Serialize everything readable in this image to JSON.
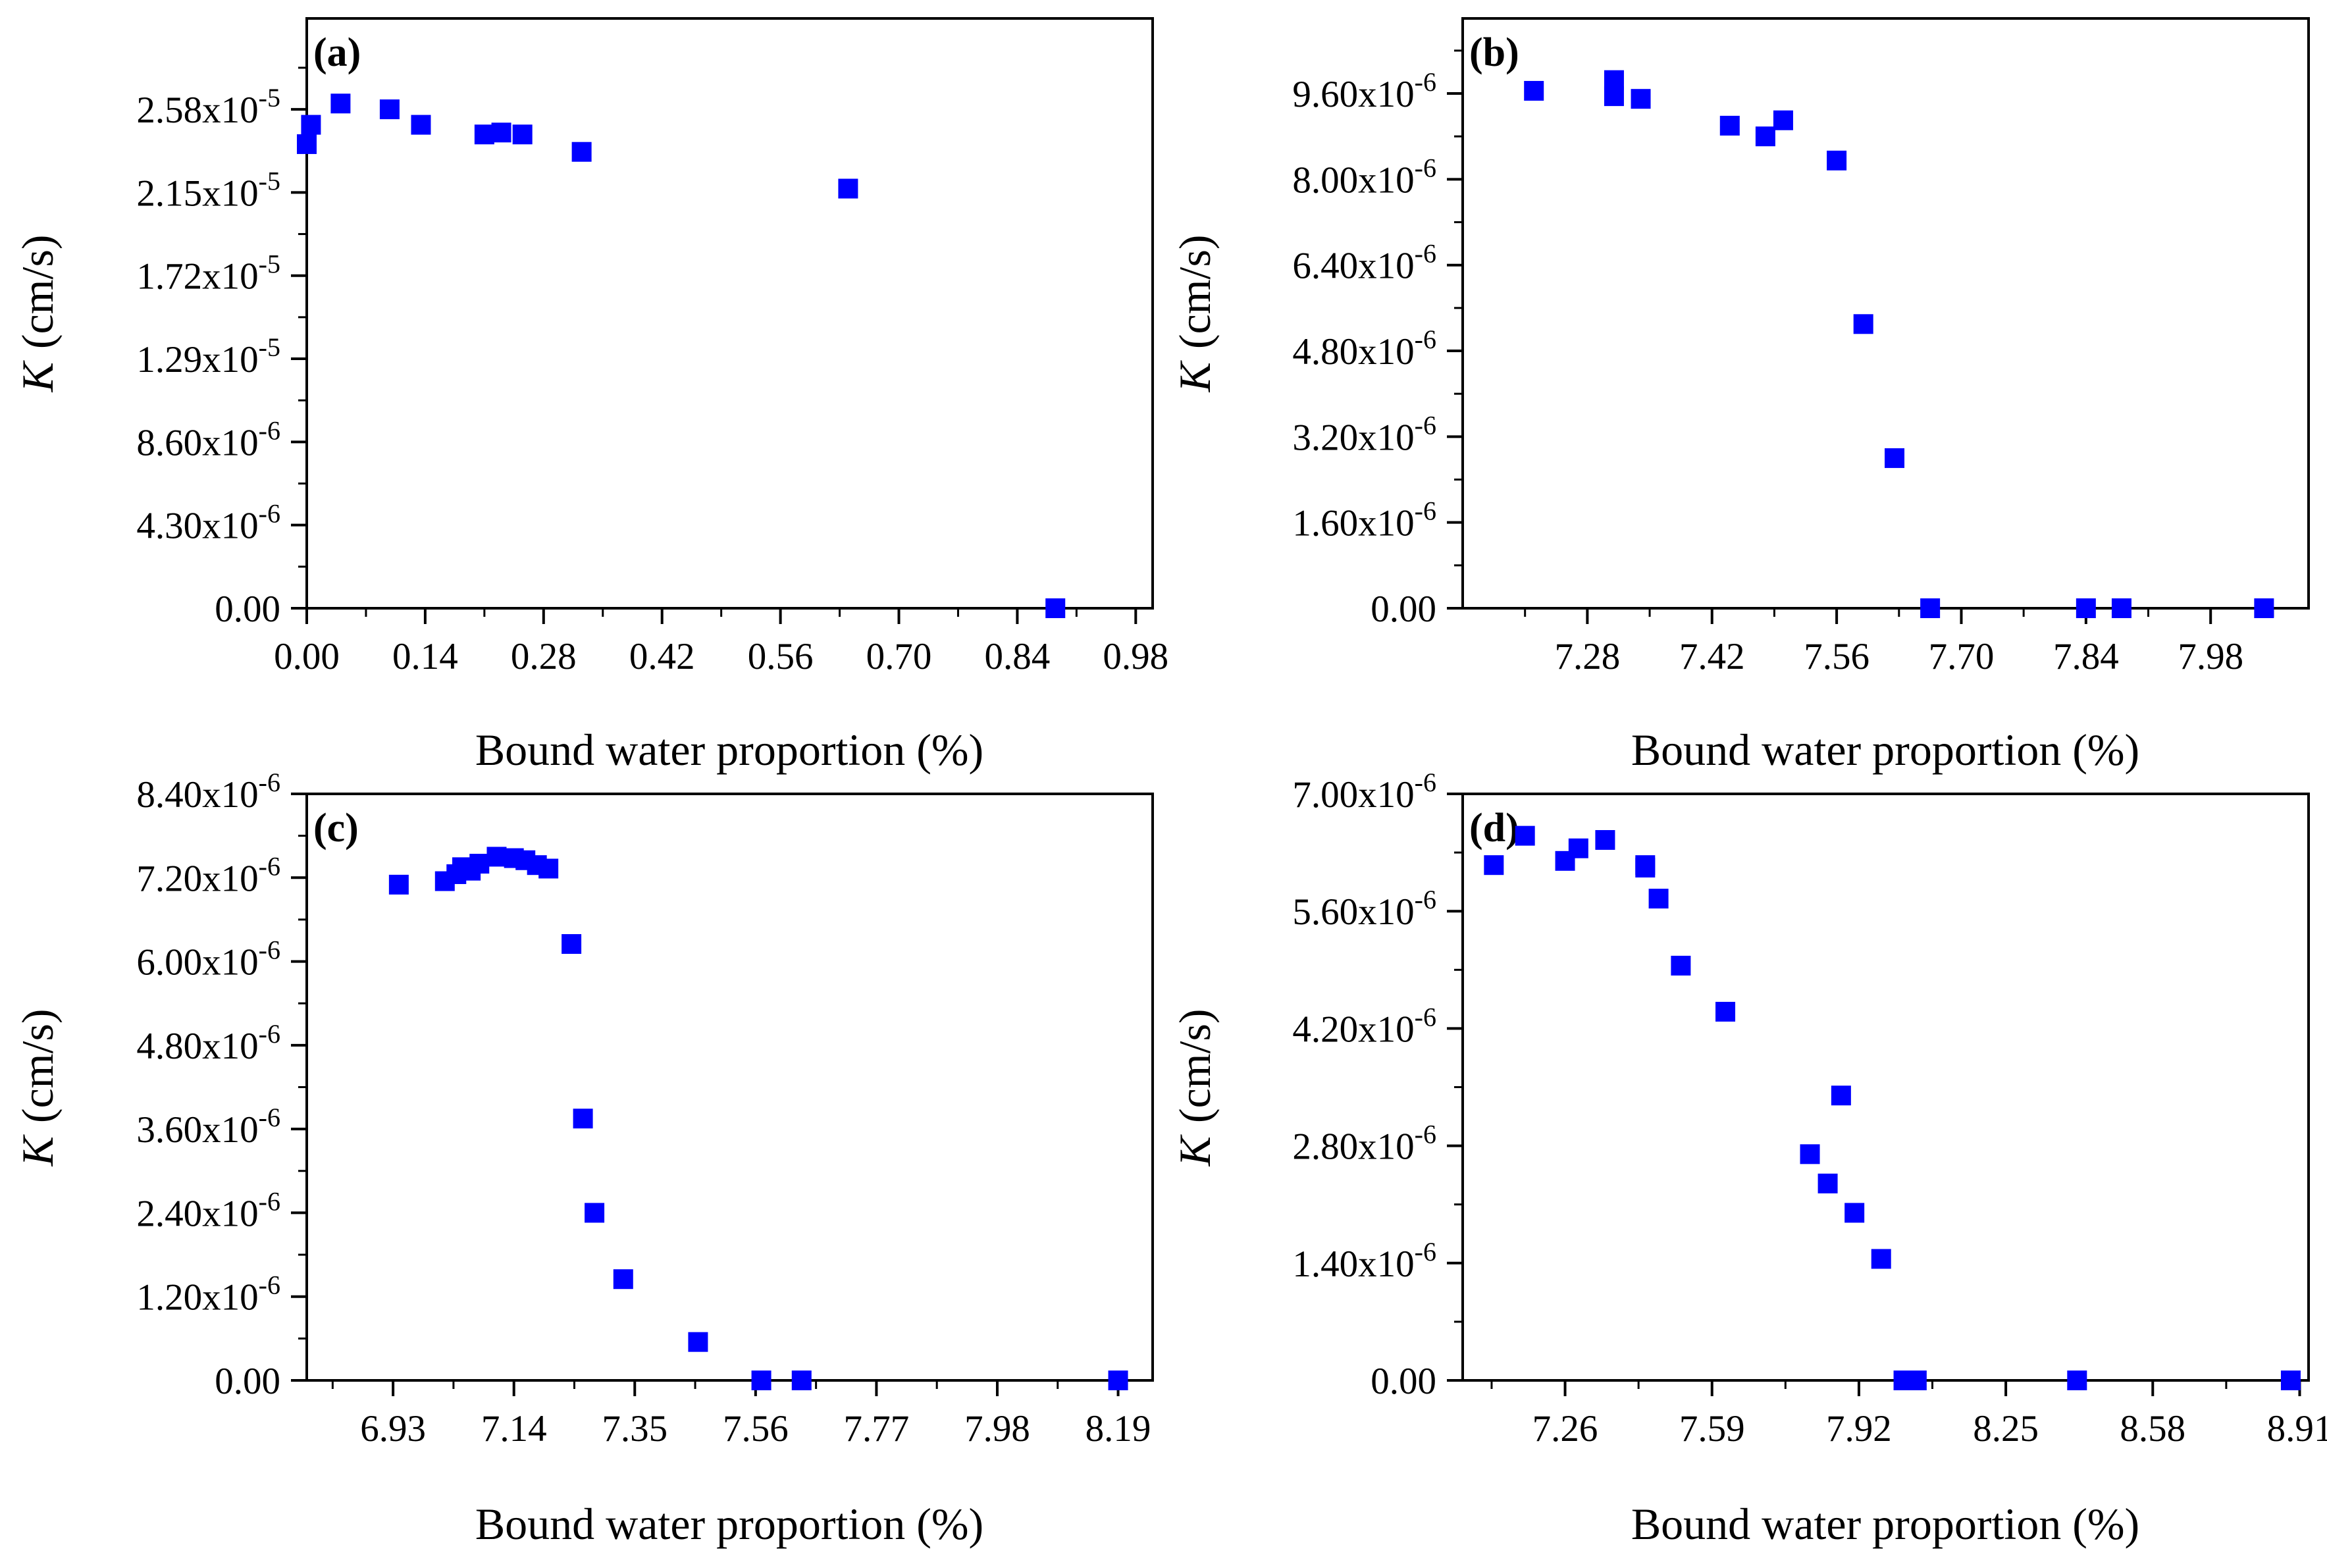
{
  "figure": {
    "marker_color": "#0000ff"
  },
  "chart_data": [
    {
      "type": "scatter",
      "panel_label": "(a)",
      "xlabel": "Bound water proportion (%)",
      "ylabel_var": "K",
      "ylabel_unit": "(cm/s)",
      "xlim": [
        0.0,
        1.0
      ],
      "ylim": [
        0.0,
        3.05e-05
      ],
      "xticks": [
        {
          "v": 0.0,
          "label": "0.00"
        },
        {
          "v": 0.14,
          "label": "0.14"
        },
        {
          "v": 0.28,
          "label": "0.28"
        },
        {
          "v": 0.42,
          "label": "0.42"
        },
        {
          "v": 0.56,
          "label": "0.56"
        },
        {
          "v": 0.7,
          "label": "0.70"
        },
        {
          "v": 0.84,
          "label": "0.84"
        },
        {
          "v": 0.98,
          "label": "0.98"
        }
      ],
      "yticks": [
        {
          "v": 0,
          "label": "0.00",
          "exp": ""
        },
        {
          "v": 4.3e-06,
          "label": "4.30x10",
          "exp": "-6"
        },
        {
          "v": 8.6e-06,
          "label": "8.60x10",
          "exp": "-6"
        },
        {
          "v": 1.29e-05,
          "label": "1.29x10",
          "exp": "-5"
        },
        {
          "v": 1.72e-05,
          "label": "1.72x10",
          "exp": "-5"
        },
        {
          "v": 2.15e-05,
          "label": "2.15x10",
          "exp": "-5"
        },
        {
          "v": 2.58e-05,
          "label": "2.58x10",
          "exp": "-5"
        }
      ],
      "x": [
        0.0,
        0.005,
        0.04,
        0.098,
        0.135,
        0.21,
        0.23,
        0.255,
        0.325,
        0.64,
        0.885
      ],
      "y": [
        2.4e-05,
        2.5e-05,
        2.61e-05,
        2.58e-05,
        2.5e-05,
        2.45e-05,
        2.46e-05,
        2.45e-05,
        2.36e-05,
        2.17e-05,
        0.0
      ]
    },
    {
      "type": "scatter",
      "panel_label": "(b)",
      "xlabel": "Bound water proportion (%)",
      "ylabel_var": "K",
      "ylabel_unit": "(cm/s)",
      "xlim": [
        7.14,
        8.09
      ],
      "ylim": [
        0.0,
        1.1e-05
      ],
      "xticks": [
        {
          "v": 7.28,
          "label": "7.28"
        },
        {
          "v": 7.42,
          "label": "7.42"
        },
        {
          "v": 7.56,
          "label": "7.56"
        },
        {
          "v": 7.7,
          "label": "7.70"
        },
        {
          "v": 7.84,
          "label": "7.84"
        },
        {
          "v": 7.98,
          "label": "7.98"
        }
      ],
      "yticks": [
        {
          "v": 0,
          "label": "0.00",
          "exp": ""
        },
        {
          "v": 1.6e-06,
          "label": "1.60x10",
          "exp": "-6"
        },
        {
          "v": 3.2e-06,
          "label": "3.20x10",
          "exp": "-6"
        },
        {
          "v": 4.8e-06,
          "label": "4.80x10",
          "exp": "-6"
        },
        {
          "v": 6.4e-06,
          "label": "6.40x10",
          "exp": "-6"
        },
        {
          "v": 8e-06,
          "label": "8.00x10",
          "exp": "-6"
        },
        {
          "v": 9.6e-06,
          "label": "9.60x10",
          "exp": "-6"
        }
      ],
      "x": [
        7.22,
        7.31,
        7.31,
        7.34,
        7.44,
        7.48,
        7.5,
        7.56,
        7.59,
        7.625,
        7.665,
        7.84,
        7.88,
        8.04
      ],
      "y": [
        9.65e-06,
        9.85e-06,
        9.55e-06,
        9.5e-06,
        9e-06,
        8.8e-06,
        9.1e-06,
        8.35e-06,
        5.3e-06,
        2.8e-06,
        0.0,
        0.0,
        0.0,
        0.0
      ]
    },
    {
      "type": "scatter",
      "panel_label": "(c)",
      "xlabel": "Bound water proportion (%)",
      "ylabel_var": "K",
      "ylabel_unit": "(cm/s)",
      "xlim": [
        6.78,
        8.25
      ],
      "ylim": [
        0.0,
        8.4e-06
      ],
      "xticks": [
        {
          "v": 6.93,
          "label": "6.93"
        },
        {
          "v": 7.14,
          "label": "7.14"
        },
        {
          "v": 7.35,
          "label": "7.35"
        },
        {
          "v": 7.56,
          "label": "7.56"
        },
        {
          "v": 7.77,
          "label": "7.77"
        },
        {
          "v": 7.98,
          "label": "7.98"
        },
        {
          "v": 8.19,
          "label": "8.19"
        }
      ],
      "yticks": [
        {
          "v": 0,
          "label": "0.00",
          "exp": ""
        },
        {
          "v": 1.2e-06,
          "label": "1.20x10",
          "exp": "-6"
        },
        {
          "v": 2.4e-06,
          "label": "2.40x10",
          "exp": "-6"
        },
        {
          "v": 3.6e-06,
          "label": "3.60x10",
          "exp": "-6"
        },
        {
          "v": 4.8e-06,
          "label": "4.80x10",
          "exp": "-6"
        },
        {
          "v": 6e-06,
          "label": "6.00x10",
          "exp": "-6"
        },
        {
          "v": 7.2e-06,
          "label": "7.20x10",
          "exp": "-6"
        },
        {
          "v": 8.4e-06,
          "label": "8.40x10",
          "exp": "-6"
        }
      ],
      "x": [
        6.94,
        7.02,
        7.04,
        7.05,
        7.065,
        7.08,
        7.11,
        7.14,
        7.16,
        7.18,
        7.2,
        7.24,
        7.26,
        7.28,
        7.33,
        7.46,
        7.57,
        7.64,
        8.19
      ],
      "y": [
        7.1e-06,
        7.15e-06,
        7.25e-06,
        7.35e-06,
        7.3e-06,
        7.4e-06,
        7.5e-06,
        7.48e-06,
        7.45e-06,
        7.38e-06,
        7.33e-06,
        6.25e-06,
        3.75e-06,
        2.4e-06,
        1.45e-06,
        5.5e-07,
        0.0,
        0.0,
        0.0
      ]
    },
    {
      "type": "scatter",
      "panel_label": "(d)",
      "xlabel": "Bound water proportion (%)",
      "ylabel_var": "K",
      "ylabel_unit": "(cm/s)",
      "xlim": [
        7.03,
        8.93
      ],
      "ylim": [
        0.0,
        7e-06
      ],
      "xticks": [
        {
          "v": 7.26,
          "label": "7.26"
        },
        {
          "v": 7.59,
          "label": "7.59"
        },
        {
          "v": 7.92,
          "label": "7.92"
        },
        {
          "v": 8.25,
          "label": "8.25"
        },
        {
          "v": 8.58,
          "label": "8.58"
        },
        {
          "v": 8.91,
          "label": "8.91"
        }
      ],
      "yticks": [
        {
          "v": 0,
          "label": "0.00",
          "exp": ""
        },
        {
          "v": 1.4e-06,
          "label": "1.40x10",
          "exp": "-6"
        },
        {
          "v": 2.8e-06,
          "label": "2.80x10",
          "exp": "-6"
        },
        {
          "v": 4.2e-06,
          "label": "4.20x10",
          "exp": "-6"
        },
        {
          "v": 5.6e-06,
          "label": "5.60x10",
          "exp": "-6"
        },
        {
          "v": 7e-06,
          "label": "7.00x10",
          "exp": "-6"
        }
      ],
      "x": [
        7.1,
        7.17,
        7.26,
        7.29,
        7.35,
        7.44,
        7.44,
        7.47,
        7.52,
        7.62,
        7.81,
        7.85,
        7.88,
        7.91,
        7.97,
        8.02,
        8.05,
        8.41,
        8.89
      ],
      "y": [
        6.15e-06,
        6.5e-06,
        6.2e-06,
        6.35e-06,
        6.45e-06,
        6.15e-06,
        6.12e-06,
        5.75e-06,
        4.95e-06,
        4.4e-06,
        2.7e-06,
        2.35e-06,
        3.4e-06,
        2e-06,
        1.45e-06,
        0.0,
        0.0,
        0.0,
        0.0
      ]
    }
  ]
}
